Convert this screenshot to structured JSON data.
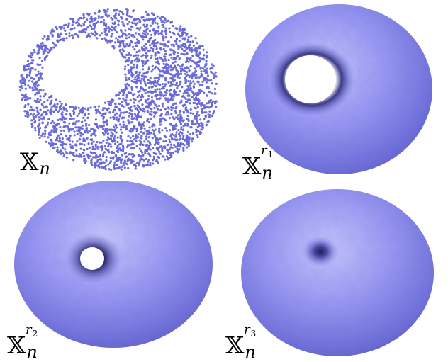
{
  "figure": {
    "panels": [
      {
        "id": "point-cloud",
        "label_base": "𝕏",
        "label_sub": "n",
        "label_sup_var": "",
        "label_sup_index": ""
      },
      {
        "id": "offset-r1",
        "label_base": "𝕏",
        "label_sub": "n",
        "label_sup_var": "r",
        "label_sup_index": "1"
      },
      {
        "id": "offset-r2",
        "label_base": "𝕏",
        "label_sub": "n",
        "label_sup_var": "r",
        "label_sup_index": "2"
      },
      {
        "id": "offset-r3",
        "label_base": "𝕏",
        "label_sub": "n",
        "label_sup_var": "r",
        "label_sup_index": "3"
      }
    ],
    "colors": {
      "surface_light": "#b5b5ff",
      "surface_mid": "#8a8af2",
      "surface_dark": "#5555b8",
      "point": "#6a6ad8",
      "hole": "#ffffff"
    }
  }
}
